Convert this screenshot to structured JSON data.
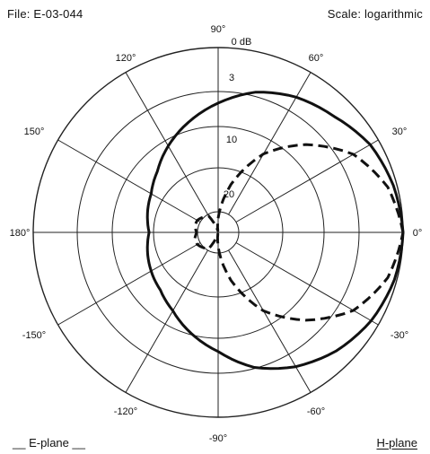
{
  "header": {
    "file": "File: E-03-044",
    "scale": "Scale: logarithmic"
  },
  "legend": {
    "e_plane": "__ E-plane __",
    "h_plane": "H-plane"
  },
  "chart_data": {
    "type": "polar",
    "scale": "logarithmic",
    "angle_unit": "degrees",
    "angle_labels": [
      {
        "angle": 90,
        "text": "90°"
      },
      {
        "angle": 60,
        "text": "60°"
      },
      {
        "angle": 30,
        "text": "30°"
      },
      {
        "angle": 0,
        "text": "0°"
      },
      {
        "angle": -30,
        "text": "-30°"
      },
      {
        "angle": -60,
        "text": "-60°"
      },
      {
        "angle": -90,
        "text": "-90°"
      },
      {
        "angle": -120,
        "text": "-120°"
      },
      {
        "angle": -150,
        "text": "-150°"
      },
      {
        "angle": 180,
        "text": "180°"
      },
      {
        "angle": 150,
        "text": "150°"
      },
      {
        "angle": 120,
        "text": "120°"
      }
    ],
    "rings_db": [
      0,
      3,
      10,
      20
    ],
    "ring_labels": [
      "0 dB",
      "3",
      "10",
      "20"
    ],
    "series": [
      {
        "name": "E-plane",
        "style": "solid",
        "color": "#111111",
        "points": [
          [
            0,
            0
          ],
          [
            15,
            -0.3
          ],
          [
            30,
            -0.8
          ],
          [
            45,
            -1.8
          ],
          [
            60,
            -2.5
          ],
          [
            75,
            -3.5
          ],
          [
            90,
            -5
          ],
          [
            105,
            -6.5
          ],
          [
            120,
            -8
          ],
          [
            135,
            -9.5
          ],
          [
            150,
            -10.5
          ],
          [
            165,
            -11
          ],
          [
            180,
            -11.5
          ],
          [
            195,
            -11
          ],
          [
            210,
            -10.5
          ],
          [
            225,
            -10
          ],
          [
            240,
            -9
          ],
          [
            255,
            -7.5
          ],
          [
            270,
            -6
          ],
          [
            285,
            -4
          ],
          [
            300,
            -2.6
          ],
          [
            315,
            -1.5
          ],
          [
            330,
            -0.7
          ],
          [
            345,
            -0.2
          ],
          [
            360,
            0
          ]
        ]
      },
      {
        "name": "H-plane",
        "style": "dashed",
        "color": "#111111",
        "points": [
          [
            0,
            0
          ],
          [
            15,
            -0.8
          ],
          [
            30,
            -2.5
          ],
          [
            45,
            -5.5
          ],
          [
            60,
            -9
          ],
          [
            75,
            -14
          ],
          [
            90,
            -20
          ],
          [
            100,
            -24
          ],
          [
            110,
            -22
          ],
          [
            120,
            -19
          ],
          [
            135,
            -18.5
          ],
          [
            150,
            -18
          ],
          [
            165,
            -18
          ],
          [
            180,
            -18.5
          ],
          [
            195,
            -18
          ],
          [
            210,
            -18
          ],
          [
            225,
            -18.5
          ],
          [
            240,
            -19
          ],
          [
            250,
            -22
          ],
          [
            260,
            -24
          ],
          [
            270,
            -20
          ],
          [
            285,
            -14
          ],
          [
            300,
            -9
          ],
          [
            315,
            -5.5
          ],
          [
            330,
            -2.5
          ],
          [
            345,
            -0.8
          ],
          [
            360,
            0
          ]
        ]
      }
    ]
  }
}
